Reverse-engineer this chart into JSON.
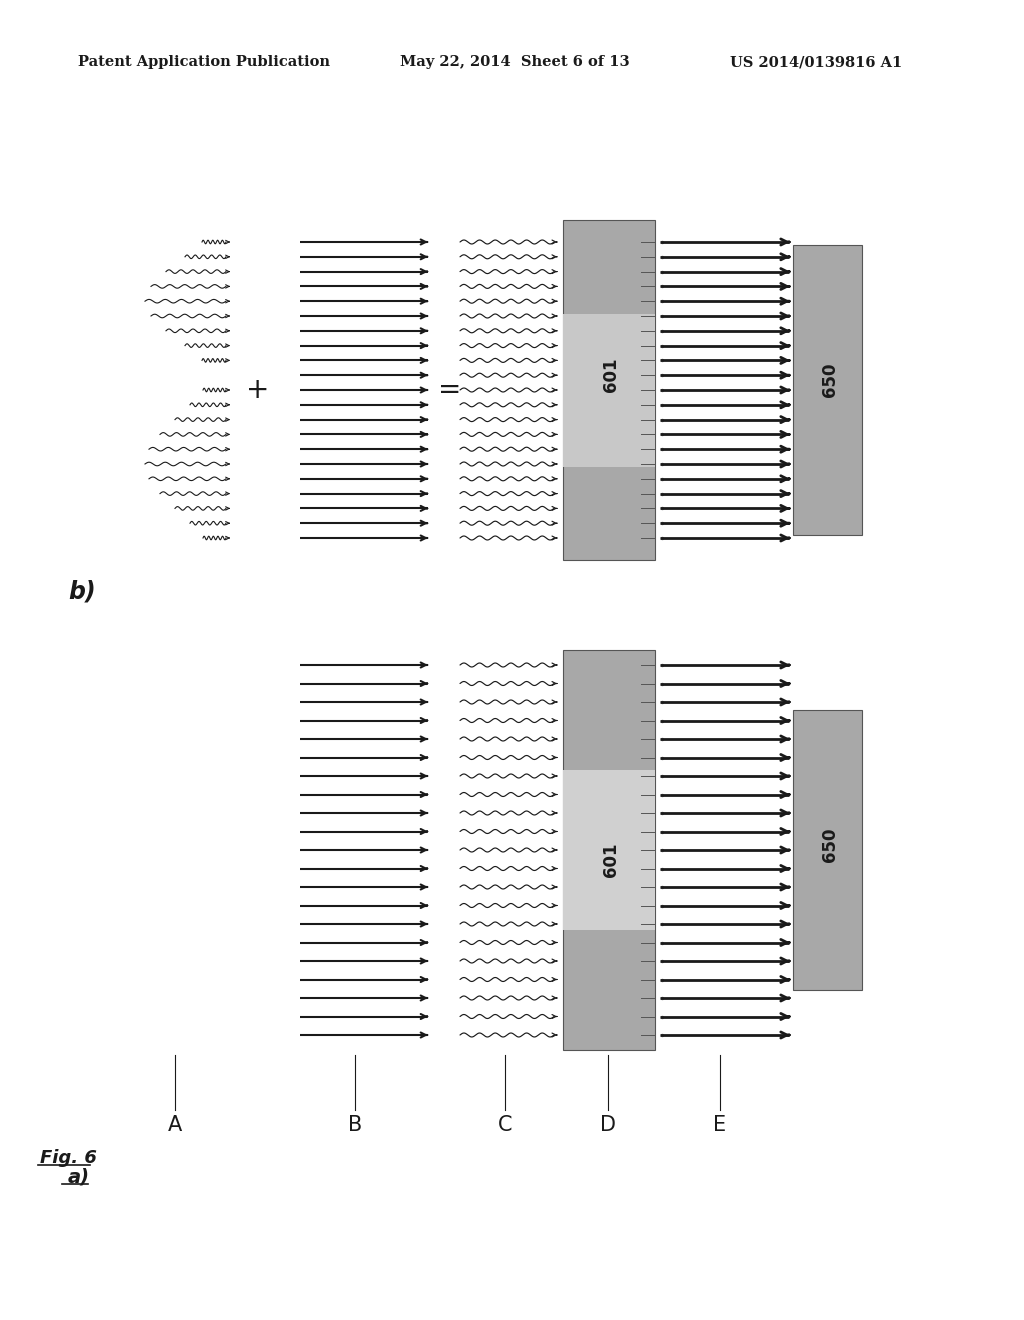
{
  "header_left": "Patent Application Publication",
  "header_center": "May 22, 2014  Sheet 6 of 13",
  "header_right": "US 2014/0139816 A1",
  "fig_label": "Fig. 6",
  "panel_a_label": "a)",
  "panel_b_label": "b)",
  "columns_labels": [
    "A",
    "B",
    "C",
    "D",
    "E"
  ],
  "label_601": "601",
  "label_650": "650",
  "bg_color": "#ffffff",
  "text_color": "#1a1a1a",
  "arrow_color": "#1a1a1a",
  "rect_fill_dark": "#a0a0a0",
  "rect_fill_light": "#d0d0d0",
  "rect_edge": "#555555"
}
